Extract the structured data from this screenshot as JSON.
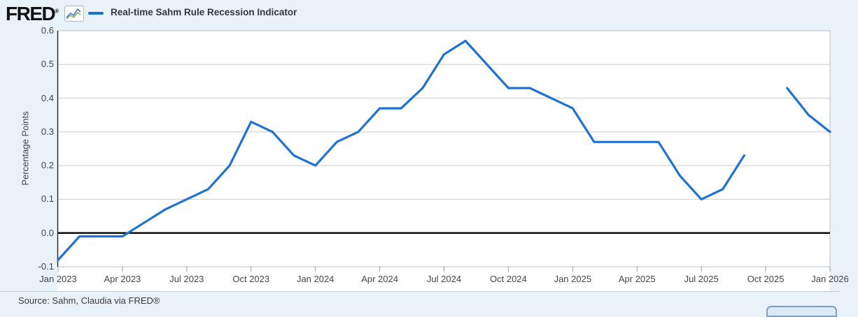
{
  "header": {
    "logo": "FRED",
    "logo_reg": "®",
    "legend_label": "Real-time Sahm Rule Recession Indicator"
  },
  "footer": {
    "source": "Source: Sahm, Claudia via FRED®"
  },
  "colors": {
    "background": "#e9f1f9",
    "plot_background": "#ffffff",
    "grid": "#cccccc",
    "plot_border": "#b6c2cc",
    "axis_line": "#222222",
    "zero_line": "#000000",
    "series": "#1e73d2",
    "tick": "#999999",
    "divider": "#cccccc"
  },
  "chart_data": {
    "type": "line",
    "title": "Real-time Sahm Rule Recession Indicator",
    "xlabel": "",
    "ylabel": "Percentage Points",
    "ylim": [
      -0.1,
      0.6
    ],
    "grid": true,
    "legend_position": "top-left",
    "line_color": "#1e73d2",
    "zero_line": true,
    "x": [
      "Jan 2023",
      "Feb 2023",
      "Mar 2023",
      "Apr 2023",
      "May 2023",
      "Jun 2023",
      "Jul 2023",
      "Aug 2023",
      "Sep 2023",
      "Oct 2023",
      "Nov 2023",
      "Dec 2023",
      "Jan 2024",
      "Feb 2024",
      "Mar 2024",
      "Apr 2024",
      "May 2024",
      "Jun 2024",
      "Jul 2024",
      "Aug 2024",
      "Sep 2024",
      "Oct 2024",
      "Nov 2024",
      "Dec 2024",
      "Jan 2025",
      "Feb 2025",
      "Mar 2025",
      "Apr 2025",
      "May 2025",
      "Jun 2025",
      "Jul 2025",
      "Aug 2025",
      "Sep 2025",
      "Oct 2025",
      "Nov 2025",
      "Dec 2025",
      "Jan 2026"
    ],
    "values": [
      -0.08,
      -0.01,
      -0.01,
      -0.01,
      0.03,
      0.07,
      0.1,
      0.13,
      0.2,
      0.33,
      0.3,
      0.23,
      0.2,
      0.27,
      0.3,
      0.37,
      0.37,
      0.43,
      0.53,
      0.57,
      0.5,
      0.43,
      0.43,
      0.4,
      0.37,
      0.27,
      0.27,
      0.27,
      0.27,
      0.17,
      0.1,
      0.13,
      0.23,
      null,
      0.43,
      0.35,
      0.3
    ],
    "y_ticks": [
      0.6,
      0.5,
      0.4,
      0.3,
      0.2,
      0.1,
      0.0,
      -0.1
    ],
    "y_tick_labels": [
      "0.6",
      "0.5",
      "0.4",
      "0.3",
      "0.2",
      "0.1",
      "0.0",
      "-0.1"
    ],
    "x_tick_indices": [
      0,
      3,
      6,
      9,
      12,
      15,
      18,
      21,
      24,
      27,
      30,
      33,
      36
    ],
    "x_tick_labels": [
      "Jan 2023",
      "Apr 2023",
      "Jul 2023",
      "Oct 2023",
      "Jan 2024",
      "Apr 2024",
      "Jul 2024",
      "Oct 2024",
      "Jan 2025",
      "Apr 2025",
      "Jul 2025",
      "Oct 2025",
      "Jan 2026"
    ]
  }
}
